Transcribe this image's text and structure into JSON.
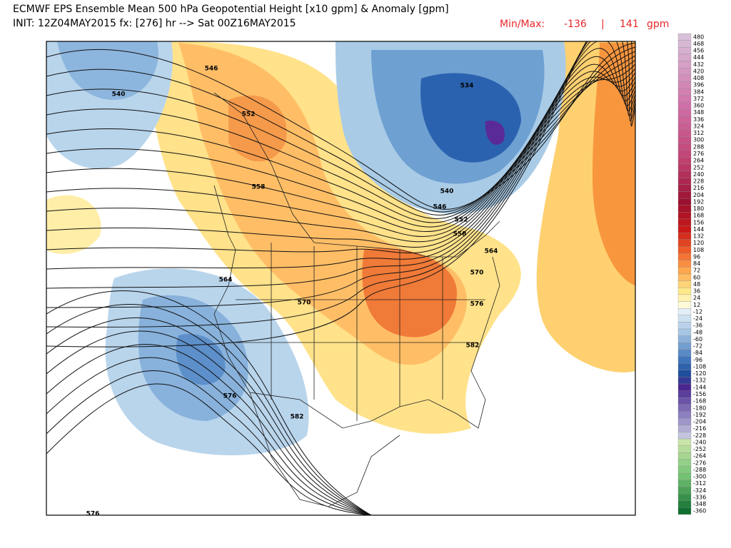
{
  "header": {
    "title": "ECMWF EPS Ensemble Mean 500 hPa Geopotential Height [x10 gpm] & Anomaly [gpm]",
    "init": "INIT: 12Z04MAY2015 fx: [276] hr --> Sat 00Z16MAY2015",
    "min_max": {
      "label": "Min/Max:",
      "min": -136,
      "separator": "|",
      "max": 141,
      "unit": "gpm"
    }
  },
  "contour_labels": [
    546,
    540,
    552,
    558,
    534,
    540,
    546,
    552,
    558,
    564,
    570,
    576,
    564,
    570,
    576,
    582,
    582,
    576
  ],
  "colorbar": {
    "levels": [
      480,
      468,
      456,
      444,
      432,
      420,
      408,
      396,
      384,
      372,
      360,
      348,
      336,
      324,
      312,
      300,
      288,
      276,
      264,
      252,
      240,
      228,
      216,
      204,
      192,
      180,
      168,
      156,
      144,
      132,
      120,
      108,
      96,
      84,
      72,
      60,
      48,
      36,
      24,
      12,
      -12,
      -24,
      -36,
      -48,
      -60,
      -72,
      -84,
      -96,
      -108,
      -120,
      -132,
      -144,
      -156,
      -168,
      -180,
      -192,
      -204,
      -216,
      -228,
      -240,
      -252,
      -264,
      -276,
      -288,
      -300,
      -312,
      -324,
      -336,
      -348,
      -360
    ]
  }
}
